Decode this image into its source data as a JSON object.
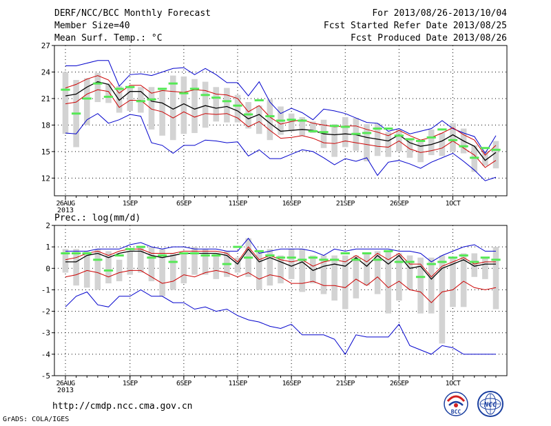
{
  "header": {
    "left_line1": "DERF/NCC/BCC Monthly Forecast",
    "left_line2": "Member Size=40",
    "left_line3": "Mean Surf. Temp.: °C",
    "right_line1": "For 2013/08/26-2013/10/04",
    "right_line2": "Fcst Started Refer Date 2013/08/25",
    "right_line3": "Fcst Produced Date 2013/08/26"
  },
  "footer": {
    "url": "http://cmdp.ncc.cma.gov.cn",
    "credit": "GrADS: COLA/IGES",
    "logo_left_text": "BCC",
    "logo_right_text": "NCC"
  },
  "colors": {
    "box": "#d3d3d3",
    "mean_dash": "#55e855",
    "ensemble_line": "#000000",
    "inner_band": "#cc0000",
    "outer_band": "#0000cc",
    "grid": "#000000"
  },
  "chart_data": [
    {
      "type": "box",
      "title": "Mean Surf. Temp.: °C",
      "xlabel": "",
      "ylabel": "",
      "x_start_label": "26AUG",
      "x_start_year": "2013",
      "x_ticks": [
        {
          "day": 0,
          "label": "26AUG"
        },
        {
          "day": 6,
          "label": "1SEP"
        },
        {
          "day": 11,
          "label": "6SEP"
        },
        {
          "day": 16,
          "label": "11SEP"
        },
        {
          "day": 21,
          "label": "16SEP"
        },
        {
          "day": 26,
          "label": "21SEP"
        },
        {
          "day": 31,
          "label": "26SEP"
        },
        {
          "day": 36,
          "label": "1OCT"
        }
      ],
      "ylim": [
        10,
        27
      ],
      "y_ticks": [
        12,
        15,
        18,
        21,
        24,
        27
      ],
      "grid": true,
      "series": {
        "box_low": [
          17.0,
          15.5,
          18.0,
          20.6,
          20.5,
          19.4,
          19.6,
          19.4,
          17.5,
          16.8,
          16.3,
          17.0,
          17.1,
          17.7,
          18.4,
          18.3,
          18.3,
          17.6,
          17.0,
          16.3,
          16.9,
          17.3,
          16.8,
          17.1,
          15.4,
          14.4,
          15.5,
          15.1,
          13.9,
          14.5,
          14.4,
          15.0,
          14.3,
          13.8,
          14.6,
          14.5,
          15.0,
          14.8,
          12.7,
          13.4,
          13.1
        ],
        "box_high": [
          24.0,
          23.1,
          23.3,
          23.9,
          22.7,
          22.4,
          22.3,
          22.3,
          22.3,
          22.0,
          23.6,
          23.5,
          23.2,
          22.9,
          22.3,
          22.2,
          21.4,
          20.6,
          20.2,
          20.9,
          20.1,
          19.3,
          18.9,
          18.4,
          18.6,
          18.1,
          18.9,
          18.8,
          18.1,
          18.2,
          17.2,
          17.5,
          16.4,
          16.3,
          17.5,
          17.1,
          18.2,
          17.6,
          15.7,
          15.1,
          16.2
        ],
        "mean_dash": [
          22.0,
          19.3,
          21.0,
          22.7,
          21.2,
          22.1,
          22.3,
          20.7,
          20.9,
          22.1,
          22.7,
          21.6,
          22.1,
          21.4,
          21.1,
          20.7,
          20.2,
          19.2,
          20.8,
          19.0,
          18.5,
          18.6,
          18.5,
          17.3,
          17.2,
          17.9,
          17.8,
          17.0,
          17.1,
          17.6,
          17.6,
          16.8,
          16.4,
          16.2,
          16.6,
          17.5,
          16.3,
          15.6,
          14.3,
          15.4,
          15.2
        ],
        "ensemble_mean": [
          21.3,
          21.5,
          22.3,
          22.9,
          22.6,
          20.8,
          21.8,
          21.8,
          20.7,
          20.5,
          19.8,
          20.4,
          19.8,
          20.2,
          19.9,
          20.1,
          19.6,
          18.7,
          19.2,
          18.2,
          17.3,
          17.4,
          17.5,
          17.4,
          17.0,
          16.9,
          17.0,
          16.9,
          16.6,
          16.4,
          16.2,
          16.9,
          16.0,
          15.6,
          15.8,
          16.2,
          16.9,
          16.2,
          15.6,
          14.0,
          14.9
        ],
        "inner_high": [
          22.2,
          22.6,
          23.2,
          23.6,
          23.1,
          21.6,
          22.5,
          22.5,
          21.6,
          21.9,
          21.8,
          21.7,
          22.0,
          21.9,
          21.5,
          21.4,
          21.0,
          19.5,
          20.2,
          18.9,
          18.1,
          18.4,
          18.6,
          18.2,
          18.0,
          17.8,
          17.9,
          17.9,
          17.5,
          17.2,
          16.8,
          17.4,
          16.8,
          16.3,
          16.6,
          17.1,
          17.7,
          16.9,
          16.3,
          14.6,
          15.7
        ],
        "inner_low": [
          20.4,
          20.6,
          21.5,
          22.0,
          21.8,
          20.0,
          20.8,
          20.8,
          19.8,
          19.5,
          18.8,
          19.5,
          18.9,
          19.3,
          19.2,
          19.3,
          18.8,
          17.8,
          18.4,
          17.4,
          16.5,
          16.6,
          16.8,
          16.5,
          16.0,
          15.9,
          16.2,
          16.0,
          15.8,
          15.6,
          15.5,
          16.2,
          15.3,
          14.9,
          15.1,
          15.4,
          16.2,
          15.4,
          14.6,
          13.2,
          14.0
        ],
        "outer_high": [
          24.7,
          24.7,
          25.0,
          25.3,
          25.3,
          22.4,
          23.7,
          23.8,
          23.6,
          24.0,
          24.4,
          24.5,
          23.7,
          24.4,
          23.7,
          22.8,
          22.8,
          21.3,
          22.9,
          20.6,
          19.3,
          19.9,
          19.4,
          18.6,
          19.8,
          19.6,
          19.3,
          18.8,
          18.3,
          18.2,
          17.3,
          17.6,
          17.0,
          17.3,
          17.6,
          18.5,
          17.6,
          17.1,
          16.7,
          14.8,
          16.8
        ],
        "outer_low": [
          17.1,
          17.0,
          18.6,
          19.3,
          18.2,
          18.6,
          19.2,
          19.0,
          16.0,
          15.7,
          14.8,
          15.7,
          15.7,
          16.3,
          16.2,
          16.0,
          16.1,
          14.5,
          15.2,
          14.2,
          14.2,
          14.7,
          15.2,
          15.0,
          14.3,
          13.5,
          14.2,
          13.9,
          14.3,
          12.3,
          13.8,
          14.0,
          13.6,
          13.1,
          13.8,
          14.3,
          14.8,
          13.9,
          12.9,
          11.7,
          12.1
        ]
      }
    },
    {
      "type": "box",
      "title": "Prec.: log(mm/d)",
      "xlabel": "",
      "ylabel": "",
      "x_start_label": "26AUG",
      "x_start_year": "2013",
      "x_ticks": [
        {
          "day": 0,
          "label": "26AUG"
        },
        {
          "day": 6,
          "label": "1SEP"
        },
        {
          "day": 11,
          "label": "6SEP"
        },
        {
          "day": 16,
          "label": "11SEP"
        },
        {
          "day": 21,
          "label": "16SEP"
        },
        {
          "day": 26,
          "label": "21SEP"
        },
        {
          "day": 31,
          "label": "26SEP"
        },
        {
          "day": 36,
          "label": "1OCT"
        }
      ],
      "ylim": [
        -5,
        2
      ],
      "y_ticks": [
        -5,
        -4,
        -3,
        -2,
        -1,
        0,
        1,
        2
      ],
      "grid": true,
      "series": {
        "box_low": [
          -0.2,
          -0.8,
          -0.9,
          -1.0,
          -0.7,
          -0.6,
          -0.3,
          -0.2,
          -0.6,
          -1.3,
          -1.0,
          -0.7,
          -0.3,
          -0.3,
          -0.5,
          -0.4,
          -0.2,
          -0.4,
          -1.0,
          -0.8,
          -0.7,
          -0.5,
          -1.1,
          -0.7,
          -1.2,
          -1.5,
          -1.9,
          -1.4,
          -0.8,
          -1.2,
          -2.1,
          -1.5,
          -1.0,
          -2.1,
          -2.1,
          -3.5,
          -1.8,
          -1.8,
          -0.4,
          -0.5,
          -1.9
        ],
        "box_high": [
          0.9,
          0.9,
          0.8,
          0.9,
          0.8,
          0.4,
          0.8,
          1.0,
          1.0,
          0.9,
          0.7,
          0.7,
          1.0,
          0.9,
          0.7,
          0.8,
          0.5,
          1.4,
          0.8,
          0.9,
          0.6,
          0.9,
          0.9,
          0.6,
          0.6,
          0.6,
          0.6,
          0.6,
          0.7,
          0.8,
          0.8,
          0.7,
          0.6,
          0.5,
          0.5,
          0.6,
          0.5,
          0.7,
          0.7,
          0.5,
          1.0
        ],
        "mean_dash": [
          0.7,
          0.7,
          0.7,
          0.4,
          -0.1,
          0.6,
          0.9,
          1.0,
          0.5,
          0.6,
          0.3,
          0.7,
          0.7,
          0.6,
          0.6,
          0.2,
          1.0,
          0.5,
          0.8,
          0.6,
          0.5,
          0.5,
          0.4,
          0.5,
          0.4,
          0.4,
          0.7,
          0.4,
          0.7,
          0.4,
          0.8,
          0.3,
          0.3,
          -0.4,
          0.2,
          0.3,
          0.5,
          0.6,
          0.3,
          0.5,
          0.4
        ],
        "ensemble_mean": [
          0.3,
          0.3,
          0.6,
          0.7,
          0.5,
          0.7,
          0.8,
          0.8,
          0.6,
          0.5,
          0.6,
          0.7,
          0.7,
          0.7,
          0.7,
          0.6,
          0.2,
          0.9,
          0.3,
          0.5,
          0.3,
          0.1,
          0.3,
          -0.1,
          0.1,
          0.2,
          0.1,
          0.5,
          0.1,
          0.6,
          0.2,
          0.6,
          0.0,
          0.1,
          -0.5,
          0.0,
          0.2,
          0.4,
          0.1,
          0.2,
          0.2
        ],
        "inner_high": [
          0.4,
          0.5,
          0.7,
          0.8,
          0.6,
          0.8,
          0.9,
          0.9,
          0.7,
          0.7,
          0.7,
          0.8,
          0.8,
          0.8,
          0.8,
          0.7,
          0.3,
          1.0,
          0.4,
          0.6,
          0.4,
          0.3,
          0.4,
          0.1,
          0.3,
          0.4,
          0.3,
          0.6,
          0.3,
          0.7,
          0.4,
          0.7,
          0.2,
          0.2,
          -0.4,
          0.1,
          0.3,
          0.5,
          0.2,
          0.3,
          0.3
        ],
        "inner_low": [
          -0.4,
          -0.3,
          -0.1,
          -0.2,
          -0.4,
          -0.2,
          -0.1,
          -0.1,
          -0.4,
          -0.7,
          -0.6,
          -0.3,
          -0.4,
          -0.2,
          -0.1,
          -0.2,
          -0.4,
          -0.2,
          -0.5,
          -0.3,
          -0.4,
          -0.7,
          -0.7,
          -0.6,
          -0.8,
          -0.8,
          -0.9,
          -0.5,
          -0.8,
          -0.4,
          -0.9,
          -0.6,
          -1.0,
          -1.1,
          -1.6,
          -1.1,
          -1.0,
          -0.6,
          -0.9,
          -1.0,
          -0.9
        ],
        "outer_high": [
          0.8,
          0.8,
          0.8,
          0.9,
          0.9,
          0.9,
          1.1,
          1.2,
          1.0,
          0.9,
          1.0,
          1.0,
          0.9,
          0.9,
          0.9,
          0.8,
          0.8,
          1.4,
          0.7,
          0.8,
          0.9,
          0.9,
          0.9,
          0.8,
          0.6,
          0.9,
          0.8,
          0.9,
          0.9,
          0.9,
          0.9,
          0.8,
          0.8,
          0.7,
          0.3,
          0.6,
          0.8,
          1.0,
          1.1,
          0.8,
          0.8
        ],
        "outer_low": [
          -1.8,
          -1.3,
          -1.1,
          -1.7,
          -1.8,
          -1.3,
          -1.3,
          -1.0,
          -1.3,
          -1.3,
          -1.6,
          -1.6,
          -1.9,
          -1.8,
          -2.0,
          -1.9,
          -2.2,
          -2.4,
          -2.5,
          -2.7,
          -2.8,
          -2.6,
          -3.1,
          -3.1,
          -3.1,
          -3.3,
          -4.0,
          -3.1,
          -3.2,
          -3.2,
          -3.2,
          -2.6,
          -3.6,
          -3.8,
          -4.0,
          -3.6,
          -3.7,
          -4.0,
          -4.0,
          -4.0,
          -4.0
        ]
      }
    }
  ]
}
